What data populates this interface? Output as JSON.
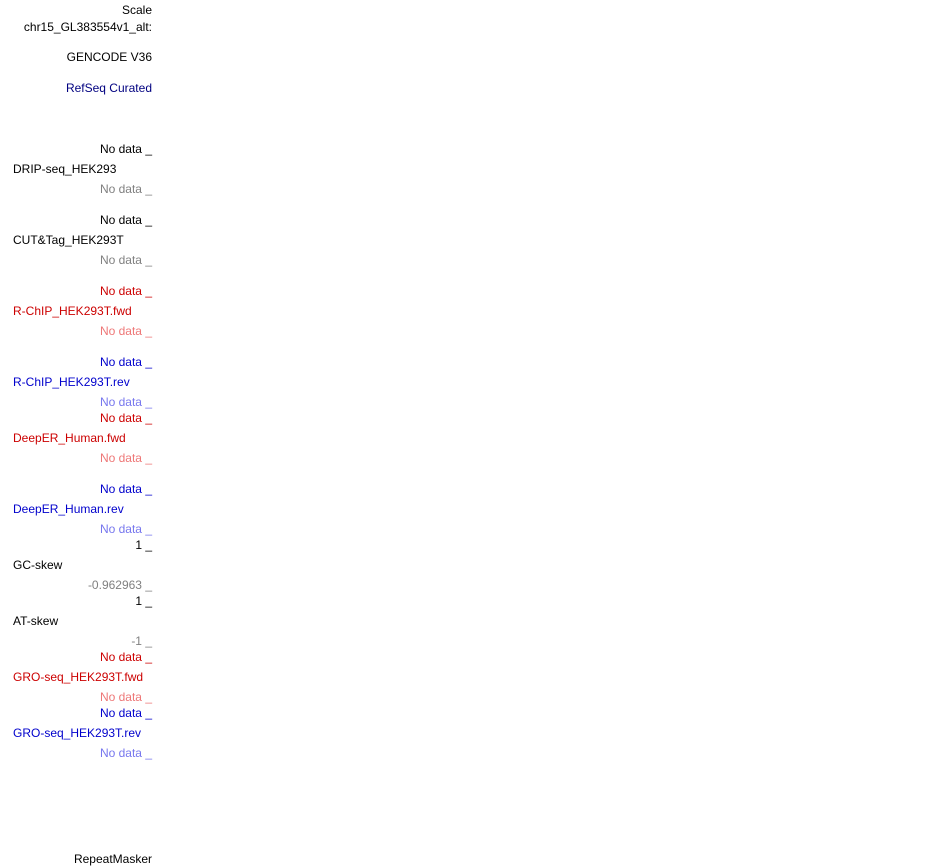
{
  "header": {
    "scale_label": "Scale",
    "chrom_label": "chr15_GL383554v1_alt:",
    "gencode_label": "GENCODE V36",
    "refseq_label": "RefSeq Curated"
  },
  "tracks": {
    "drip": {
      "name": "DRIP-seq_HEK293",
      "top": "No data _",
      "bottom": "No data _"
    },
    "cuttag": {
      "name": "CUT&Tag_HEK293T",
      "top": "No data _",
      "bottom": "No data _"
    },
    "rchip_fwd": {
      "name": "R-ChIP_HEK293T.fwd",
      "top": "No data _",
      "bottom": "No data _"
    },
    "rchip_rev": {
      "name": "R-ChIP_HEK293T.rev",
      "top": "No data _",
      "bottom": "No data _"
    },
    "deeper_fwd": {
      "name": "DeepER_Human.fwd",
      "top": "No data _",
      "bottom": "No data _"
    },
    "deeper_rev": {
      "name": "DeepER_Human.rev",
      "top": "No data _",
      "bottom": "No data _"
    },
    "gc_skew": {
      "name": "GC-skew",
      "top": "1 _",
      "bottom": "-0.962963 _"
    },
    "at_skew": {
      "name": "AT-skew",
      "top": "1 _",
      "bottom": "-1 _"
    },
    "gro_fwd": {
      "name": "GRO-seq_HEK293T.fwd",
      "top": "No data _",
      "bottom": "No data _"
    },
    "gro_rev": {
      "name": "GRO-seq_HEK293T.rev",
      "top": "No data _",
      "bottom": "No data _"
    }
  },
  "footer": {
    "repeatmasker_label": "RepeatMasker"
  },
  "colors": {
    "black": "#000000",
    "gray": "#808080",
    "red": "#cc0000",
    "pink": "#ee7777",
    "blue": "#0000cc",
    "light_blue": "#7777ee",
    "navy": "#000080"
  }
}
